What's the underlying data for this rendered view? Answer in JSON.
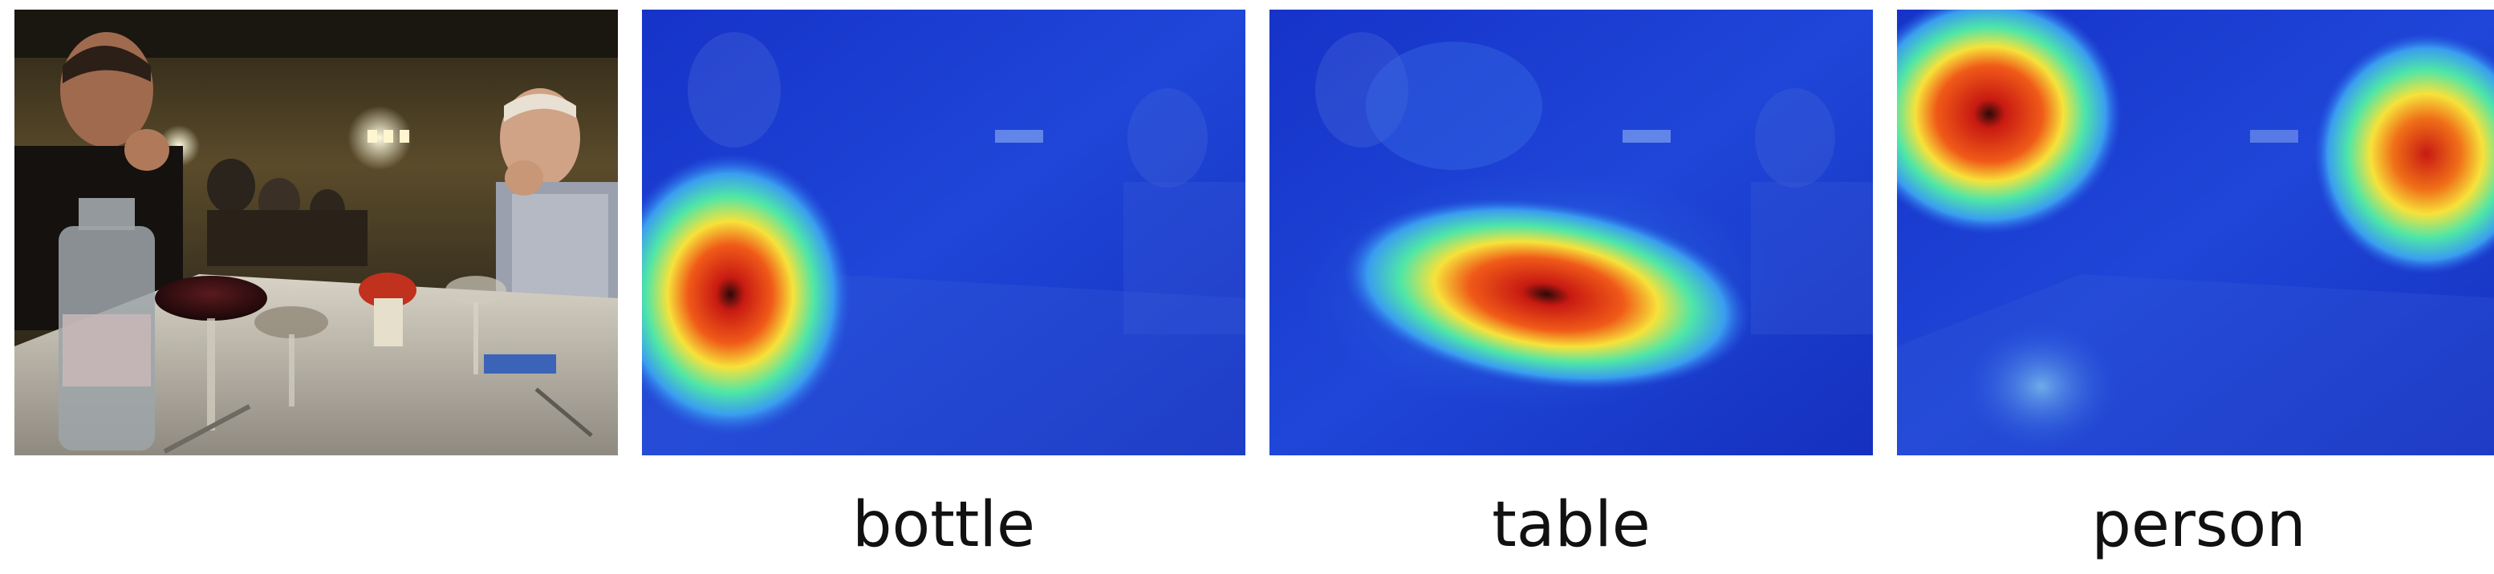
{
  "figure": {
    "panels": [
      {
        "kind": "photo"
      },
      {
        "kind": "heatmap",
        "label": "bottle"
      },
      {
        "kind": "heatmap",
        "label": "table"
      },
      {
        "kind": "heatmap",
        "label": "person"
      }
    ]
  },
  "colors": {
    "heatmap_low": "#1a2fd6",
    "heatmap_mid": "#3ee0a0",
    "heatmap_high": "#d21a12"
  }
}
